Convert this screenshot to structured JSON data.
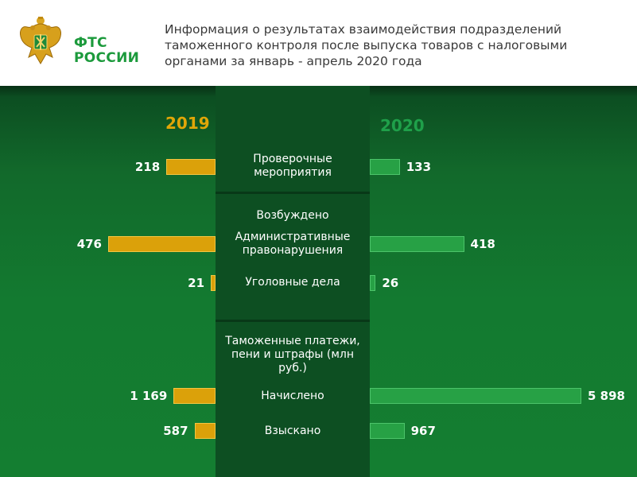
{
  "header": {
    "logo_line1": "ФТС",
    "logo_line2": "РОССИИ",
    "title": "Информация о результатах взаимодействия подразделений таможенного контроля после выпуска товаров с налоговыми органами за январь - апрель 2020 года"
  },
  "colors": {
    "y2019": "#dba10a",
    "y2020": "#27a145",
    "background": "#137a30"
  },
  "chart_data": {
    "type": "bar",
    "years": [
      "2019",
      "2020"
    ],
    "categories": [
      "Проверочные мероприятия",
      "Административные правонарушения",
      "Уголовные дела",
      "Начислено",
      "Взыскано"
    ],
    "series": [
      {
        "name": "2019",
        "values": [
          218,
          476,
          21,
          1169,
          587
        ]
      },
      {
        "name": "2020",
        "values": [
          133,
          418,
          26,
          5898,
          967
        ]
      }
    ],
    "value_labels_2019": [
      "218",
      "476",
      "21",
      "1 169",
      "587"
    ],
    "value_labels_2020": [
      "133",
      "418",
      "26",
      "5 898",
      "967"
    ],
    "section_headings": [
      "Возбуждено",
      "Таможенные платежи, пени и штрафы (млн руб.)"
    ]
  }
}
